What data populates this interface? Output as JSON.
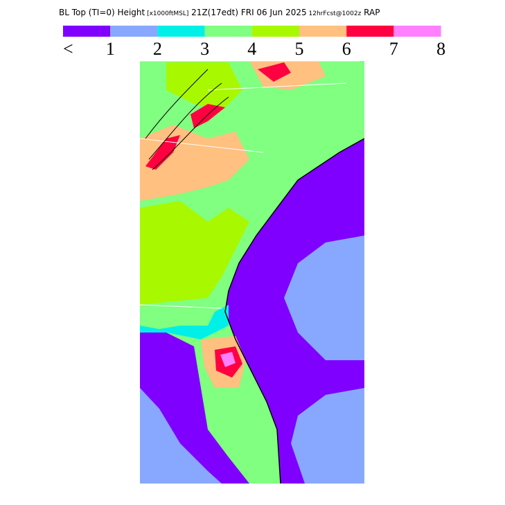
{
  "header": {
    "segments": [
      {
        "text": "BL Top (TI=0) Height",
        "small": false
      },
      {
        "text": "[x1000ftMSL]",
        "small": true
      },
      {
        "text": "21Z(17edt)",
        "small": false
      },
      {
        "text": "FRI 06 Jun 2025",
        "small": false
      },
      {
        "text": "12hrFcst@1002z",
        "small": true
      },
      {
        "text": "RAP",
        "small": false
      }
    ]
  },
  "legend": {
    "colors": [
      "#7f00ff",
      "#88a8ff",
      "#00f0e8",
      "#80ff80",
      "#a8f800",
      "#ffc080",
      "#ff0040",
      "#ff80ff"
    ],
    "labels": [
      "<",
      "1",
      "2",
      "3",
      "4",
      "5",
      "6",
      "7",
      "8"
    ]
  }
}
